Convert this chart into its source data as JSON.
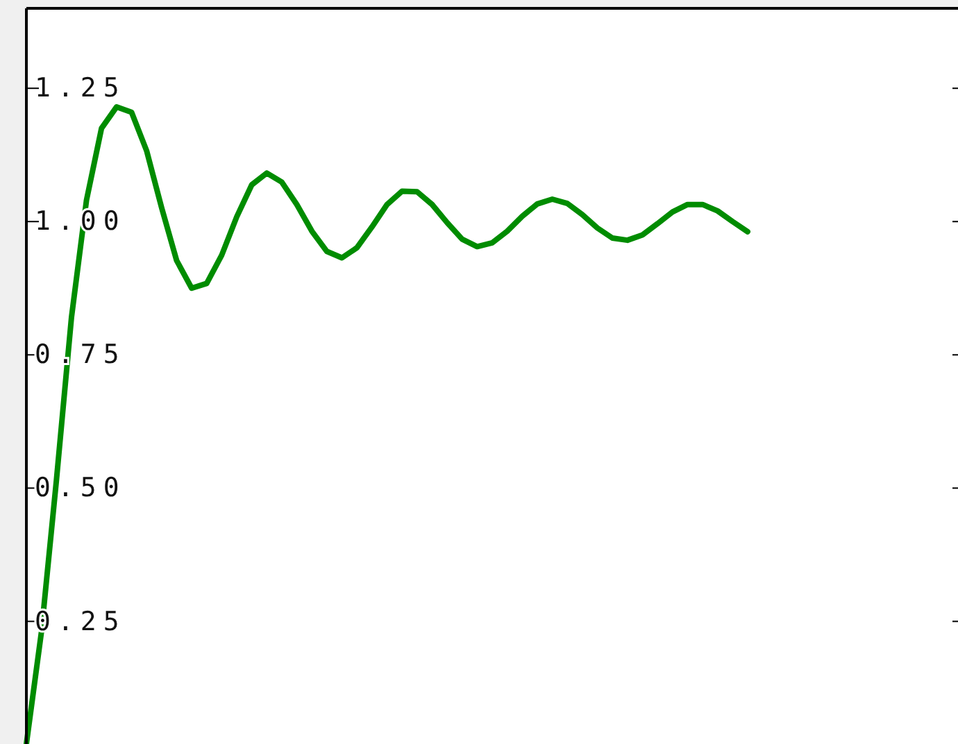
{
  "chart_data": {
    "type": "line",
    "tick_labels": "y",
    "ylim": [
      0.02,
      1.4
    ],
    "categories": [
      null,
      null,
      null,
      null,
      null,
      null,
      null,
      null,
      null,
      null,
      null,
      null,
      null,
      null,
      null,
      null,
      null,
      null,
      null,
      null,
      null,
      null,
      null,
      null,
      null,
      null,
      null,
      null,
      null,
      null,
      null,
      null,
      null,
      null,
      null,
      null,
      null,
      null,
      null,
      null,
      null,
      null,
      null,
      null,
      null,
      null,
      null,
      null,
      null,
      null,
      null,
      null,
      null,
      null,
      null,
      null,
      null,
      null,
      null,
      null,
      null,
      null,
      null
    ],
    "yticks": [
      {
        "value": 0.25,
        "label": "0.25"
      },
      {
        "value": 0.5,
        "label": "0.50"
      },
      {
        "value": 0.75,
        "label": "0.75"
      },
      {
        "value": 1,
        "label": "1.00"
      },
      {
        "value": 1.25,
        "label": "1.25"
      }
    ],
    "grid": false,
    "marker": "none",
    "line_style": "solid",
    "series": [
      {
        "color": "#008c00",
        "values": [
          0.02,
          0.23,
          0.515,
          0.82,
          1.04,
          1.175,
          1.215,
          1.205,
          1.133,
          1.026,
          0.927,
          0.875,
          0.884,
          0.937,
          1.009,
          1.069,
          1.091,
          1.074,
          1.032,
          0.982,
          0.944,
          0.932,
          0.951,
          0.99,
          1.032,
          1.057,
          1.056,
          1.032,
          0.998,
          0.967,
          0.953,
          0.96,
          0.982,
          1.01,
          1.033,
          1.042,
          1.034,
          1.013,
          0.988,
          0.969,
          0.965,
          0.975,
          0.996,
          1.018,
          1.032,
          1.032,
          1.02,
          1.0,
          0.981,
          null,
          null,
          null,
          null,
          null,
          null,
          null,
          null,
          null,
          null,
          null,
          null,
          null,
          null
        ]
      }
    ]
  }
}
